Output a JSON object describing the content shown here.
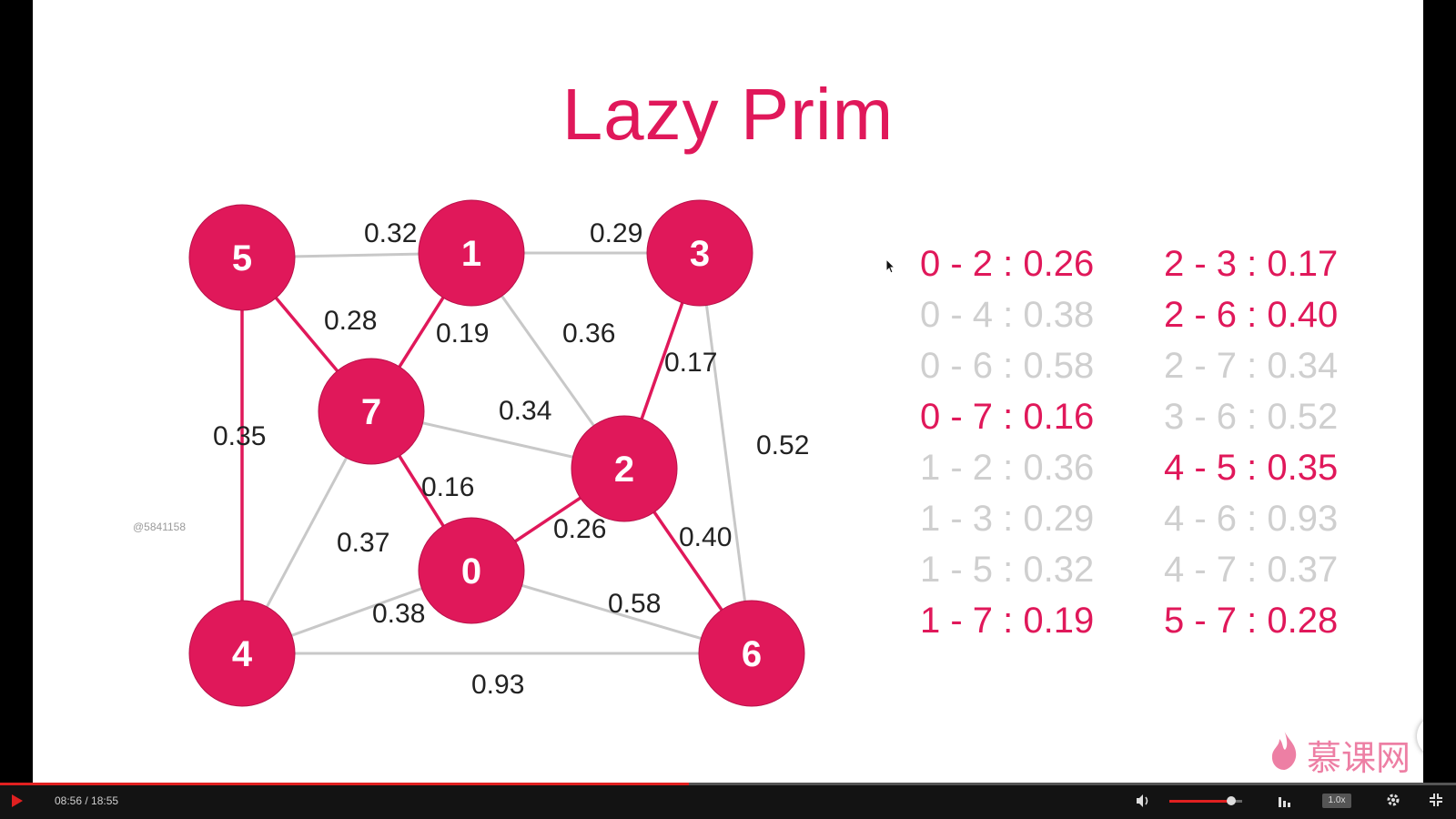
{
  "slide": {
    "title": "Lazy Prim",
    "watermark": "@5841158",
    "accent_color": "#e0185a",
    "inactive_color": "#c8c8c8",
    "nodes": [
      {
        "id": "0",
        "label": "0"
      },
      {
        "id": "1",
        "label": "1"
      },
      {
        "id": "2",
        "label": "2"
      },
      {
        "id": "3",
        "label": "3"
      },
      {
        "id": "4",
        "label": "4"
      },
      {
        "id": "5",
        "label": "5"
      },
      {
        "id": "6",
        "label": "6"
      },
      {
        "id": "7",
        "label": "7"
      }
    ],
    "edges": [
      {
        "from": "5",
        "to": "1",
        "weight": "0.32",
        "in_mst": false
      },
      {
        "from": "1",
        "to": "3",
        "weight": "0.29",
        "in_mst": false
      },
      {
        "from": "5",
        "to": "7",
        "weight": "0.28",
        "in_mst": true
      },
      {
        "from": "1",
        "to": "7",
        "weight": "0.19",
        "in_mst": true
      },
      {
        "from": "1",
        "to": "2",
        "weight": "0.36",
        "in_mst": false
      },
      {
        "from": "3",
        "to": "2",
        "weight": "0.17",
        "in_mst": true
      },
      {
        "from": "5",
        "to": "4",
        "weight": "0.35",
        "in_mst": true
      },
      {
        "from": "7",
        "to": "2",
        "weight": "0.34",
        "in_mst": false
      },
      {
        "from": "3",
        "to": "6",
        "weight": "0.52",
        "in_mst": false
      },
      {
        "from": "7",
        "to": "0",
        "weight": "0.16",
        "in_mst": true
      },
      {
        "from": "0",
        "to": "2",
        "weight": "0.26",
        "in_mst": true
      },
      {
        "from": "7",
        "to": "4",
        "weight": "0.37",
        "in_mst": false
      },
      {
        "from": "2",
        "to": "6",
        "weight": "0.40",
        "in_mst": true
      },
      {
        "from": "4",
        "to": "0",
        "weight": "0.38",
        "in_mst": false
      },
      {
        "from": "0",
        "to": "6",
        "weight": "0.58",
        "in_mst": false
      },
      {
        "from": "4",
        "to": "6",
        "weight": "0.93",
        "in_mst": false
      }
    ],
    "edge_list": [
      {
        "text": "0 - 2 : 0.26",
        "highlighted": true
      },
      {
        "text": "0 - 4 : 0.38",
        "highlighted": false
      },
      {
        "text": "0 - 6 : 0.58",
        "highlighted": false
      },
      {
        "text": "0 - 7 : 0.16",
        "highlighted": true
      },
      {
        "text": "1 - 2 : 0.36",
        "highlighted": false
      },
      {
        "text": "1 - 3 : 0.29",
        "highlighted": false
      },
      {
        "text": "1 - 5 : 0.32",
        "highlighted": false
      },
      {
        "text": "1 - 7 : 0.19",
        "highlighted": true
      },
      {
        "text": "2 - 3 : 0.17",
        "highlighted": true
      },
      {
        "text": "2 - 6 : 0.40",
        "highlighted": true
      },
      {
        "text": "2 - 7 : 0.34",
        "highlighted": false
      },
      {
        "text": "3 - 6 : 0.52",
        "highlighted": false
      },
      {
        "text": "4 - 5 : 0.35",
        "highlighted": true
      },
      {
        "text": "4 - 6 : 0.93",
        "highlighted": false
      },
      {
        "text": "4 - 7 : 0.37",
        "highlighted": false
      },
      {
        "text": "5 - 7 : 0.28",
        "highlighted": true
      }
    ]
  },
  "logo": {
    "text": "慕课网",
    "icon": "flame-icon"
  },
  "player": {
    "time": "08:56 / 18:55",
    "progress": 0.473,
    "volume": 0.85,
    "speed": "1.0x",
    "progress_color": "#e02020",
    "icons": [
      "play-icon",
      "volume-icon",
      "quality-icon",
      "gear-icon",
      "exit-fullscreen-icon"
    ]
  }
}
